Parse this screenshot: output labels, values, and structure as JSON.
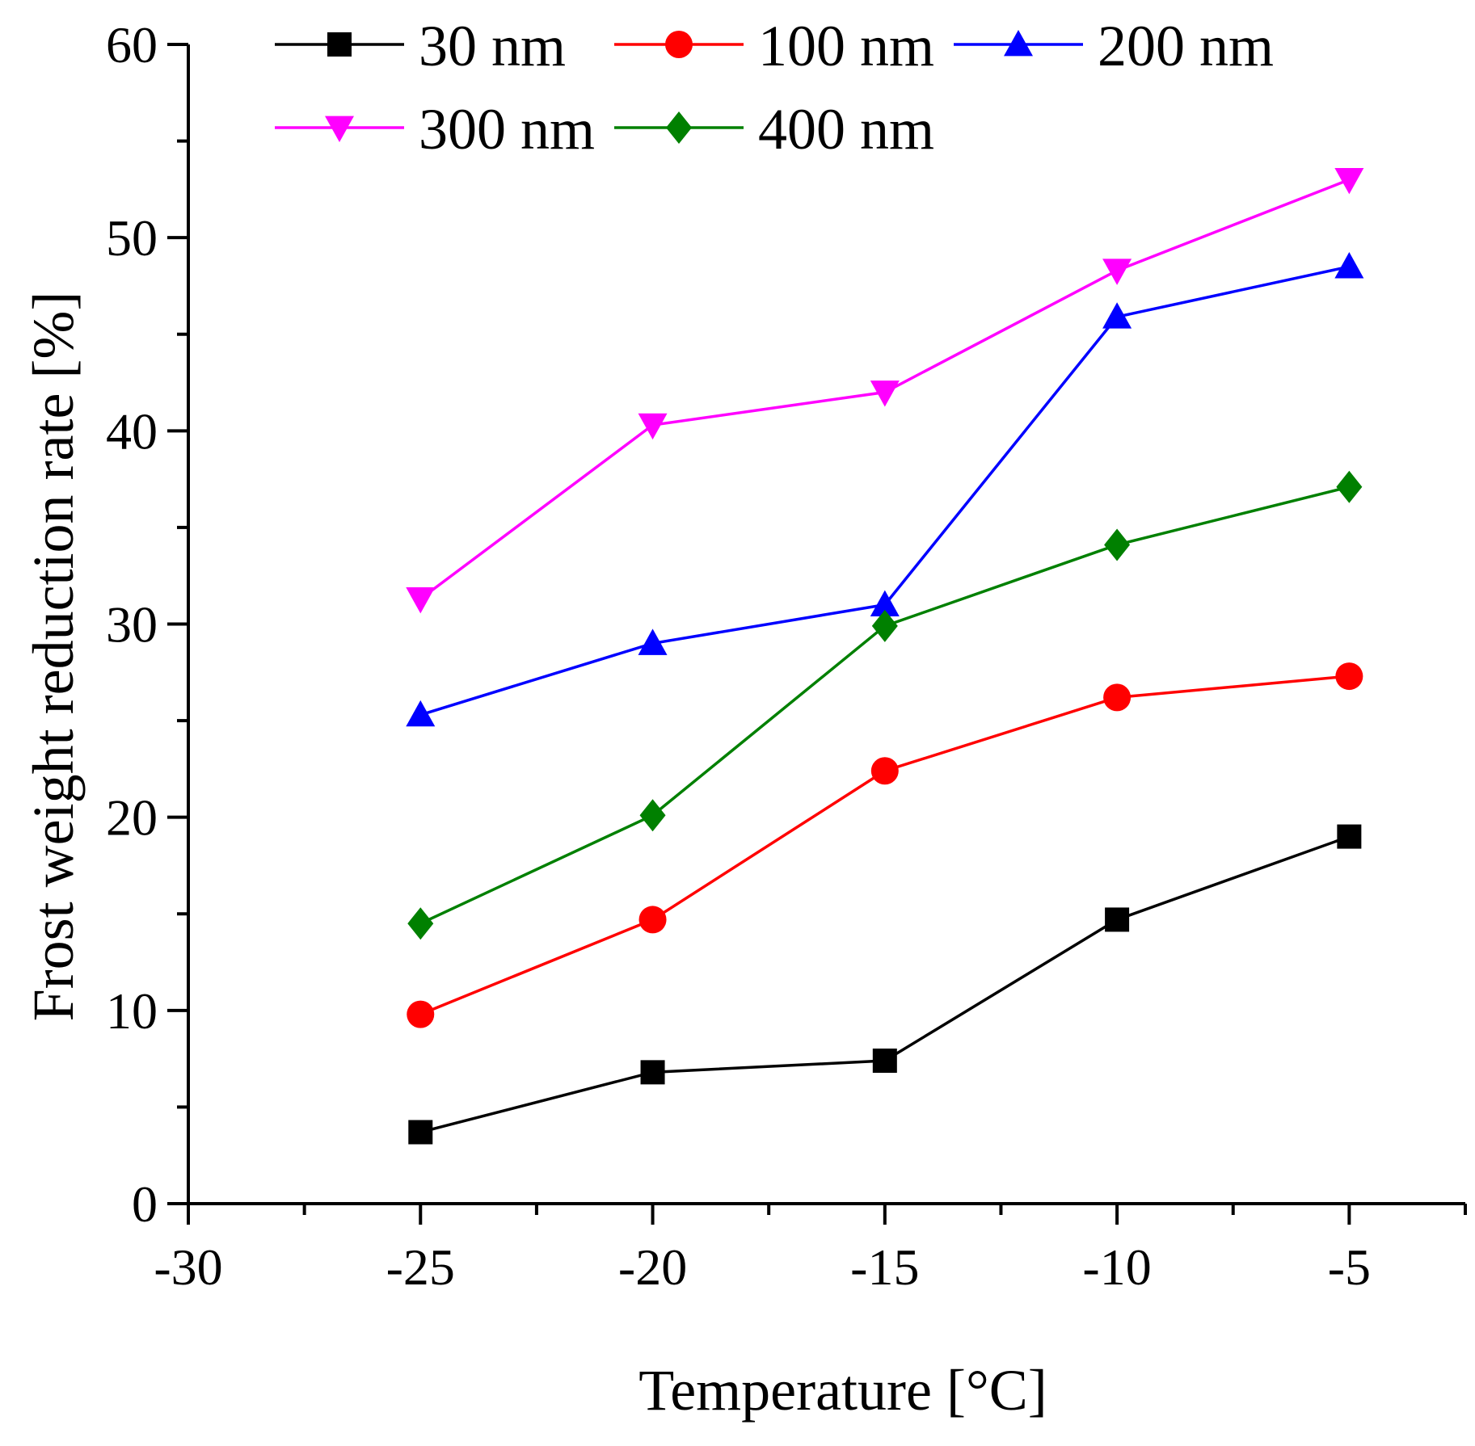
{
  "chart_data": {
    "type": "line",
    "xlabel": "Temperature [°C]",
    "ylabel": "Frost weight reduction rate [%]",
    "xlim": [
      -30,
      -2.5
    ],
    "ylim": [
      0,
      60
    ],
    "x_ticks": [
      -30,
      -25,
      -20,
      -15,
      -10,
      -5
    ],
    "x_tick_labels": [
      "-30",
      "-25",
      "-20",
      "-15",
      "-10",
      "-5"
    ],
    "y_ticks": [
      0,
      10,
      20,
      30,
      40,
      50,
      60
    ],
    "y_tick_labels": [
      "0",
      "10",
      "20",
      "30",
      "40",
      "50",
      "60"
    ],
    "grid": false,
    "legend_position": "top",
    "x": [
      -25,
      -20,
      -15,
      -10,
      -5
    ],
    "series": [
      {
        "name": "30 nm",
        "color": "#000000",
        "marker": "square",
        "values": [
          3.7,
          6.8,
          7.4,
          14.7,
          19.0
        ]
      },
      {
        "name": "100 nm",
        "color": "#ff0000",
        "marker": "circle",
        "values": [
          9.8,
          14.7,
          22.4,
          26.2,
          27.3
        ]
      },
      {
        "name": "200 nm",
        "color": "#0000ff",
        "marker": "triangle-up",
        "values": [
          25.3,
          29.0,
          31.0,
          45.9,
          48.5
        ]
      },
      {
        "name": "300 nm",
        "color": "#ff00ff",
        "marker": "triangle-down",
        "values": [
          31.3,
          40.3,
          42.0,
          48.3,
          53.0
        ]
      },
      {
        "name": "400 nm",
        "color": "#008000",
        "marker": "diamond",
        "values": [
          14.5,
          20.1,
          29.9,
          34.1,
          37.1
        ]
      }
    ]
  }
}
